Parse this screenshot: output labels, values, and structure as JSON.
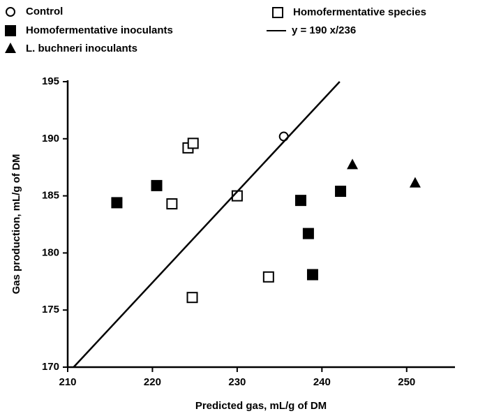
{
  "chart_data": {
    "type": "scatter",
    "xlabel": "Predicted gas, mL/g of DM",
    "ylabel": "Gas production, mL/g of DM",
    "xlim": [
      210,
      255.7
    ],
    "xticks": [
      210,
      220,
      230,
      240,
      250
    ],
    "ylim": [
      170,
      195
    ],
    "yticks": [
      170,
      175,
      180,
      185,
      190,
      195
    ],
    "grid": false,
    "series": [
      {
        "name": "Control",
        "color": "#000000",
        "marker": "circle-open",
        "x": [
          235.5
        ],
        "values": [
          190.2
        ]
      },
      {
        "name": "Homofermentative inoculants",
        "color": "#000000",
        "marker": "square-filled",
        "x": [
          215.8,
          220.5,
          237.5,
          238.4,
          238.9,
          242.2
        ],
        "values": [
          184.4,
          185.9,
          184.6,
          181.7,
          178.1,
          185.4
        ]
      },
      {
        "name": "L. buchneri inoculants",
        "color": "#000000",
        "marker": "triangle-filled",
        "x": [
          243.6,
          251.0
        ],
        "values": [
          187.7,
          186.1
        ]
      },
      {
        "name": "Homofermentative species",
        "color": "#000000",
        "marker": "square-open",
        "x": [
          224.2,
          224.8,
          222.3,
          230.0,
          224.7,
          233.7
        ],
        "values": [
          189.2,
          189.6,
          184.3,
          185.0,
          176.1,
          177.9
        ]
      },
      {
        "name": "y = 190 x/236",
        "color": "#000000",
        "marker": "line",
        "x": [
          210.7,
          242.1
        ],
        "values": [
          170,
          195
        ]
      }
    ]
  }
}
